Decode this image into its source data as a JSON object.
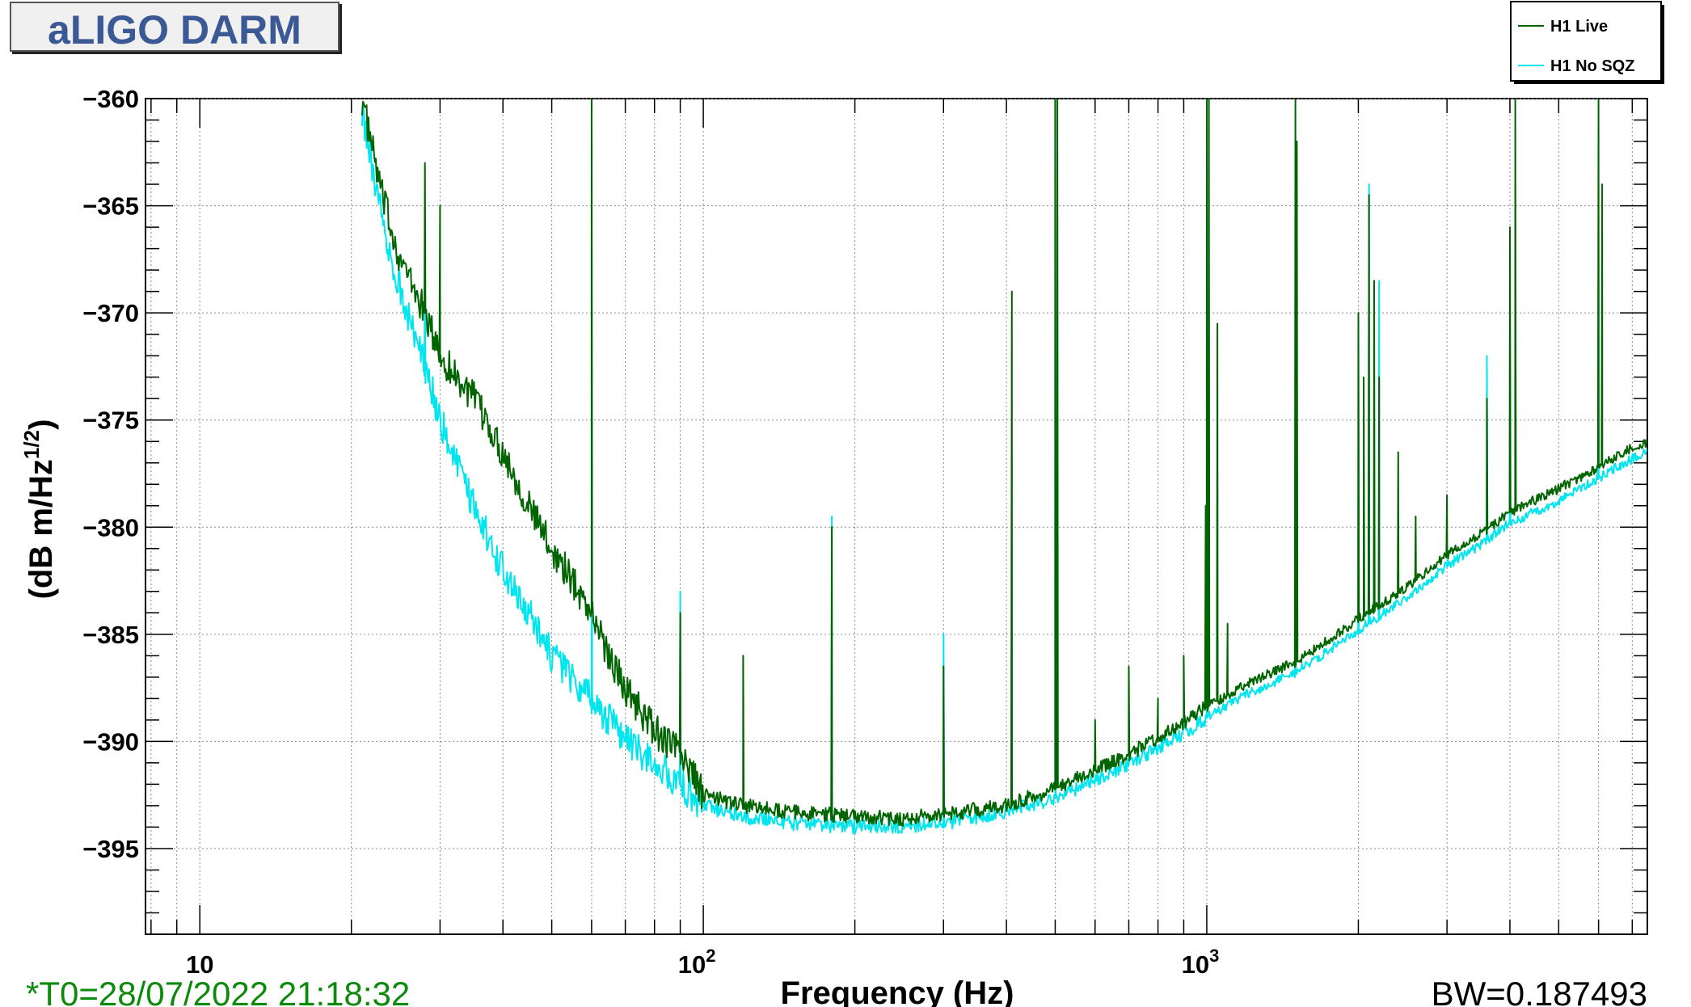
{
  "window": {
    "title": "aLIGO DARM"
  },
  "footer": {
    "timestamp": "*T0=28/07/2022 21:18:32",
    "bandwidth": "BW=0.187493"
  },
  "colors": {
    "live": "#006400",
    "nosqz": "#00e5ee",
    "title": "#3b5a95",
    "timestamp": "#0b8a0b"
  },
  "chart_data": {
    "type": "line",
    "title": "aLIGO DARM",
    "xlabel": "Frequency (Hz)",
    "ylabel": "(dB m/Hz^(1/2))",
    "ylabel_main": "(dB m/Hz",
    "ylabel_sup": "1/2",
    "ylabel_close": ")",
    "xscale": "log",
    "xlim": [
      7.8,
      7500
    ],
    "ylim": [
      -399,
      -360
    ],
    "grid": true,
    "legend": "top-right",
    "x_ticks": [
      {
        "value": 10,
        "base": "10",
        "exp": ""
      },
      {
        "value": 100,
        "base": "10",
        "exp": "2"
      },
      {
        "value": 1000,
        "base": "10",
        "exp": "3"
      }
    ],
    "y_ticks": [
      {
        "value": -360,
        "label": "−360"
      },
      {
        "value": -365,
        "label": "−365"
      },
      {
        "value": -370,
        "label": "−370"
      },
      {
        "value": -375,
        "label": "−375"
      },
      {
        "value": -380,
        "label": "−380"
      },
      {
        "value": -385,
        "label": "−385"
      },
      {
        "value": -390,
        "label": "−390"
      },
      {
        "value": -395,
        "label": "−395"
      }
    ],
    "series": [
      {
        "name": "H1 Live",
        "color": "#006400",
        "baseline": [
          [
            21,
            -360
          ],
          [
            23,
            -364.5
          ],
          [
            25,
            -367.5
          ],
          [
            28,
            -370
          ],
          [
            30,
            -372
          ],
          [
            35,
            -374
          ],
          [
            40,
            -376.5
          ],
          [
            45,
            -379
          ],
          [
            50,
            -381
          ],
          [
            55,
            -382.5
          ],
          [
            60,
            -384
          ],
          [
            65,
            -386
          ],
          [
            70,
            -387.5
          ],
          [
            80,
            -389.5
          ],
          [
            90,
            -390.5
          ],
          [
            100,
            -392.5
          ],
          [
            120,
            -393
          ],
          [
            150,
            -393.3
          ],
          [
            200,
            -393.5
          ],
          [
            250,
            -393.6
          ],
          [
            300,
            -393.4
          ],
          [
            400,
            -393
          ],
          [
            500,
            -392.2
          ],
          [
            600,
            -391.3
          ],
          [
            700,
            -390.6
          ],
          [
            800,
            -389.8
          ],
          [
            900,
            -389.1
          ],
          [
            1000,
            -388.4
          ],
          [
            1200,
            -387.3
          ],
          [
            1500,
            -386.3
          ],
          [
            2000,
            -384.3
          ],
          [
            2500,
            -382.8
          ],
          [
            3000,
            -381.3
          ],
          [
            3500,
            -380.3
          ],
          [
            4000,
            -379.3
          ],
          [
            5000,
            -378.2
          ],
          [
            6000,
            -377.2
          ],
          [
            7000,
            -376.3
          ],
          [
            7500,
            -376.1
          ]
        ],
        "peaks": [
          [
            28,
            -363
          ],
          [
            30,
            -365
          ],
          [
            60,
            -360
          ],
          [
            90,
            -384
          ],
          [
            120,
            -386
          ],
          [
            180,
            -380
          ],
          [
            300,
            -386.5
          ],
          [
            410,
            -369
          ],
          [
            500,
            -360
          ],
          [
            505,
            -360
          ],
          [
            600,
            -389
          ],
          [
            700,
            -386.5
          ],
          [
            800,
            -388
          ],
          [
            900,
            -386
          ],
          [
            995,
            -379
          ],
          [
            1000,
            -360
          ],
          [
            1010,
            -360
          ],
          [
            1050,
            -370.5
          ],
          [
            1100,
            -384.5
          ],
          [
            1500,
            -360
          ],
          [
            1510,
            -362
          ],
          [
            2000,
            -370
          ],
          [
            2050,
            -373
          ],
          [
            2100,
            -364.5
          ],
          [
            2150,
            -368.5
          ],
          [
            2200,
            -373
          ],
          [
            2400,
            -376.5
          ],
          [
            2600,
            -379.5
          ],
          [
            3000,
            -378.5
          ],
          [
            3600,
            -374
          ],
          [
            4000,
            -366
          ],
          [
            4100,
            -360
          ],
          [
            6000,
            -360
          ],
          [
            6100,
            -364
          ]
        ]
      },
      {
        "name": "H1 No SQZ",
        "color": "#00e5ee",
        "baseline": [
          [
            21,
            -360.5
          ],
          [
            23,
            -365.5
          ],
          [
            25,
            -369
          ],
          [
            28,
            -372.5
          ],
          [
            30,
            -375
          ],
          [
            35,
            -379
          ],
          [
            40,
            -382
          ],
          [
            45,
            -384
          ],
          [
            50,
            -386
          ],
          [
            55,
            -387
          ],
          [
            60,
            -388
          ],
          [
            65,
            -389
          ],
          [
            70,
            -390
          ],
          [
            80,
            -391
          ],
          [
            90,
            -392
          ],
          [
            100,
            -393
          ],
          [
            120,
            -393.5
          ],
          [
            150,
            -393.8
          ],
          [
            200,
            -394
          ],
          [
            250,
            -394
          ],
          [
            300,
            -393.8
          ],
          [
            400,
            -393.3
          ],
          [
            500,
            -392.6
          ],
          [
            600,
            -391.8
          ],
          [
            700,
            -391.1
          ],
          [
            800,
            -390.3
          ],
          [
            900,
            -389.6
          ],
          [
            1000,
            -388.9
          ],
          [
            1200,
            -387.8
          ],
          [
            1500,
            -386.8
          ],
          [
            2000,
            -384.8
          ],
          [
            2500,
            -383.3
          ],
          [
            3000,
            -381.8
          ],
          [
            3500,
            -380.8
          ],
          [
            4000,
            -379.8
          ],
          [
            5000,
            -378.8
          ],
          [
            6000,
            -377.7
          ],
          [
            7000,
            -376.8
          ],
          [
            7500,
            -376.5
          ]
        ],
        "peaks": [
          [
            28,
            -366
          ],
          [
            60,
            -367
          ],
          [
            90,
            -383
          ],
          [
            180,
            -379.5
          ],
          [
            300,
            -385
          ],
          [
            500,
            -360
          ],
          [
            1000,
            -360
          ],
          [
            1500,
            -365
          ],
          [
            2000,
            -372
          ],
          [
            2100,
            -364
          ],
          [
            2200,
            -368.5
          ],
          [
            3600,
            -372
          ],
          [
            4000,
            -371
          ],
          [
            6000,
            -366.5
          ]
        ]
      }
    ]
  }
}
